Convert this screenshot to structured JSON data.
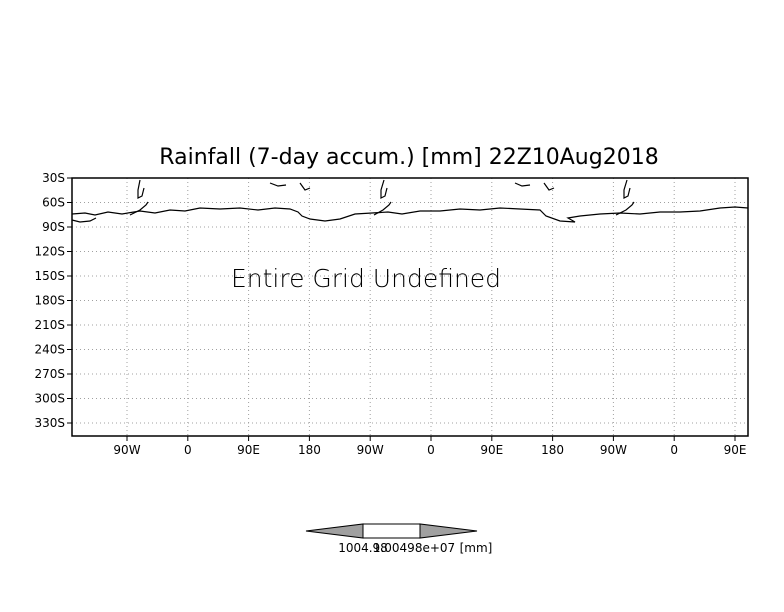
{
  "chart_data": {
    "type": "heatmap",
    "title": "Rainfall (7-day accum.) [mm] 22Z10Aug2018",
    "message": "Entire Grid Undefined",
    "y_ticks": [
      "30S",
      "60S",
      "90S",
      "120S",
      "150S",
      "180S",
      "210S",
      "240S",
      "270S",
      "300S",
      "330S"
    ],
    "x_ticks": [
      "90W",
      "0",
      "90E",
      "180",
      "90W",
      "0",
      "90E",
      "180",
      "90W",
      "0",
      "90E"
    ],
    "grid": true,
    "colorbar": {
      "labels": [
        "1004.98",
        "1.00498e+07"
      ],
      "unit": "[mm]",
      "fill_colors": [
        "#a0a0a0",
        "#ffffff",
        "#a0a0a0"
      ]
    },
    "values": []
  },
  "colors": {
    "frame": "#000000",
    "grid": "#a0a0a0",
    "coast": "#000000"
  }
}
